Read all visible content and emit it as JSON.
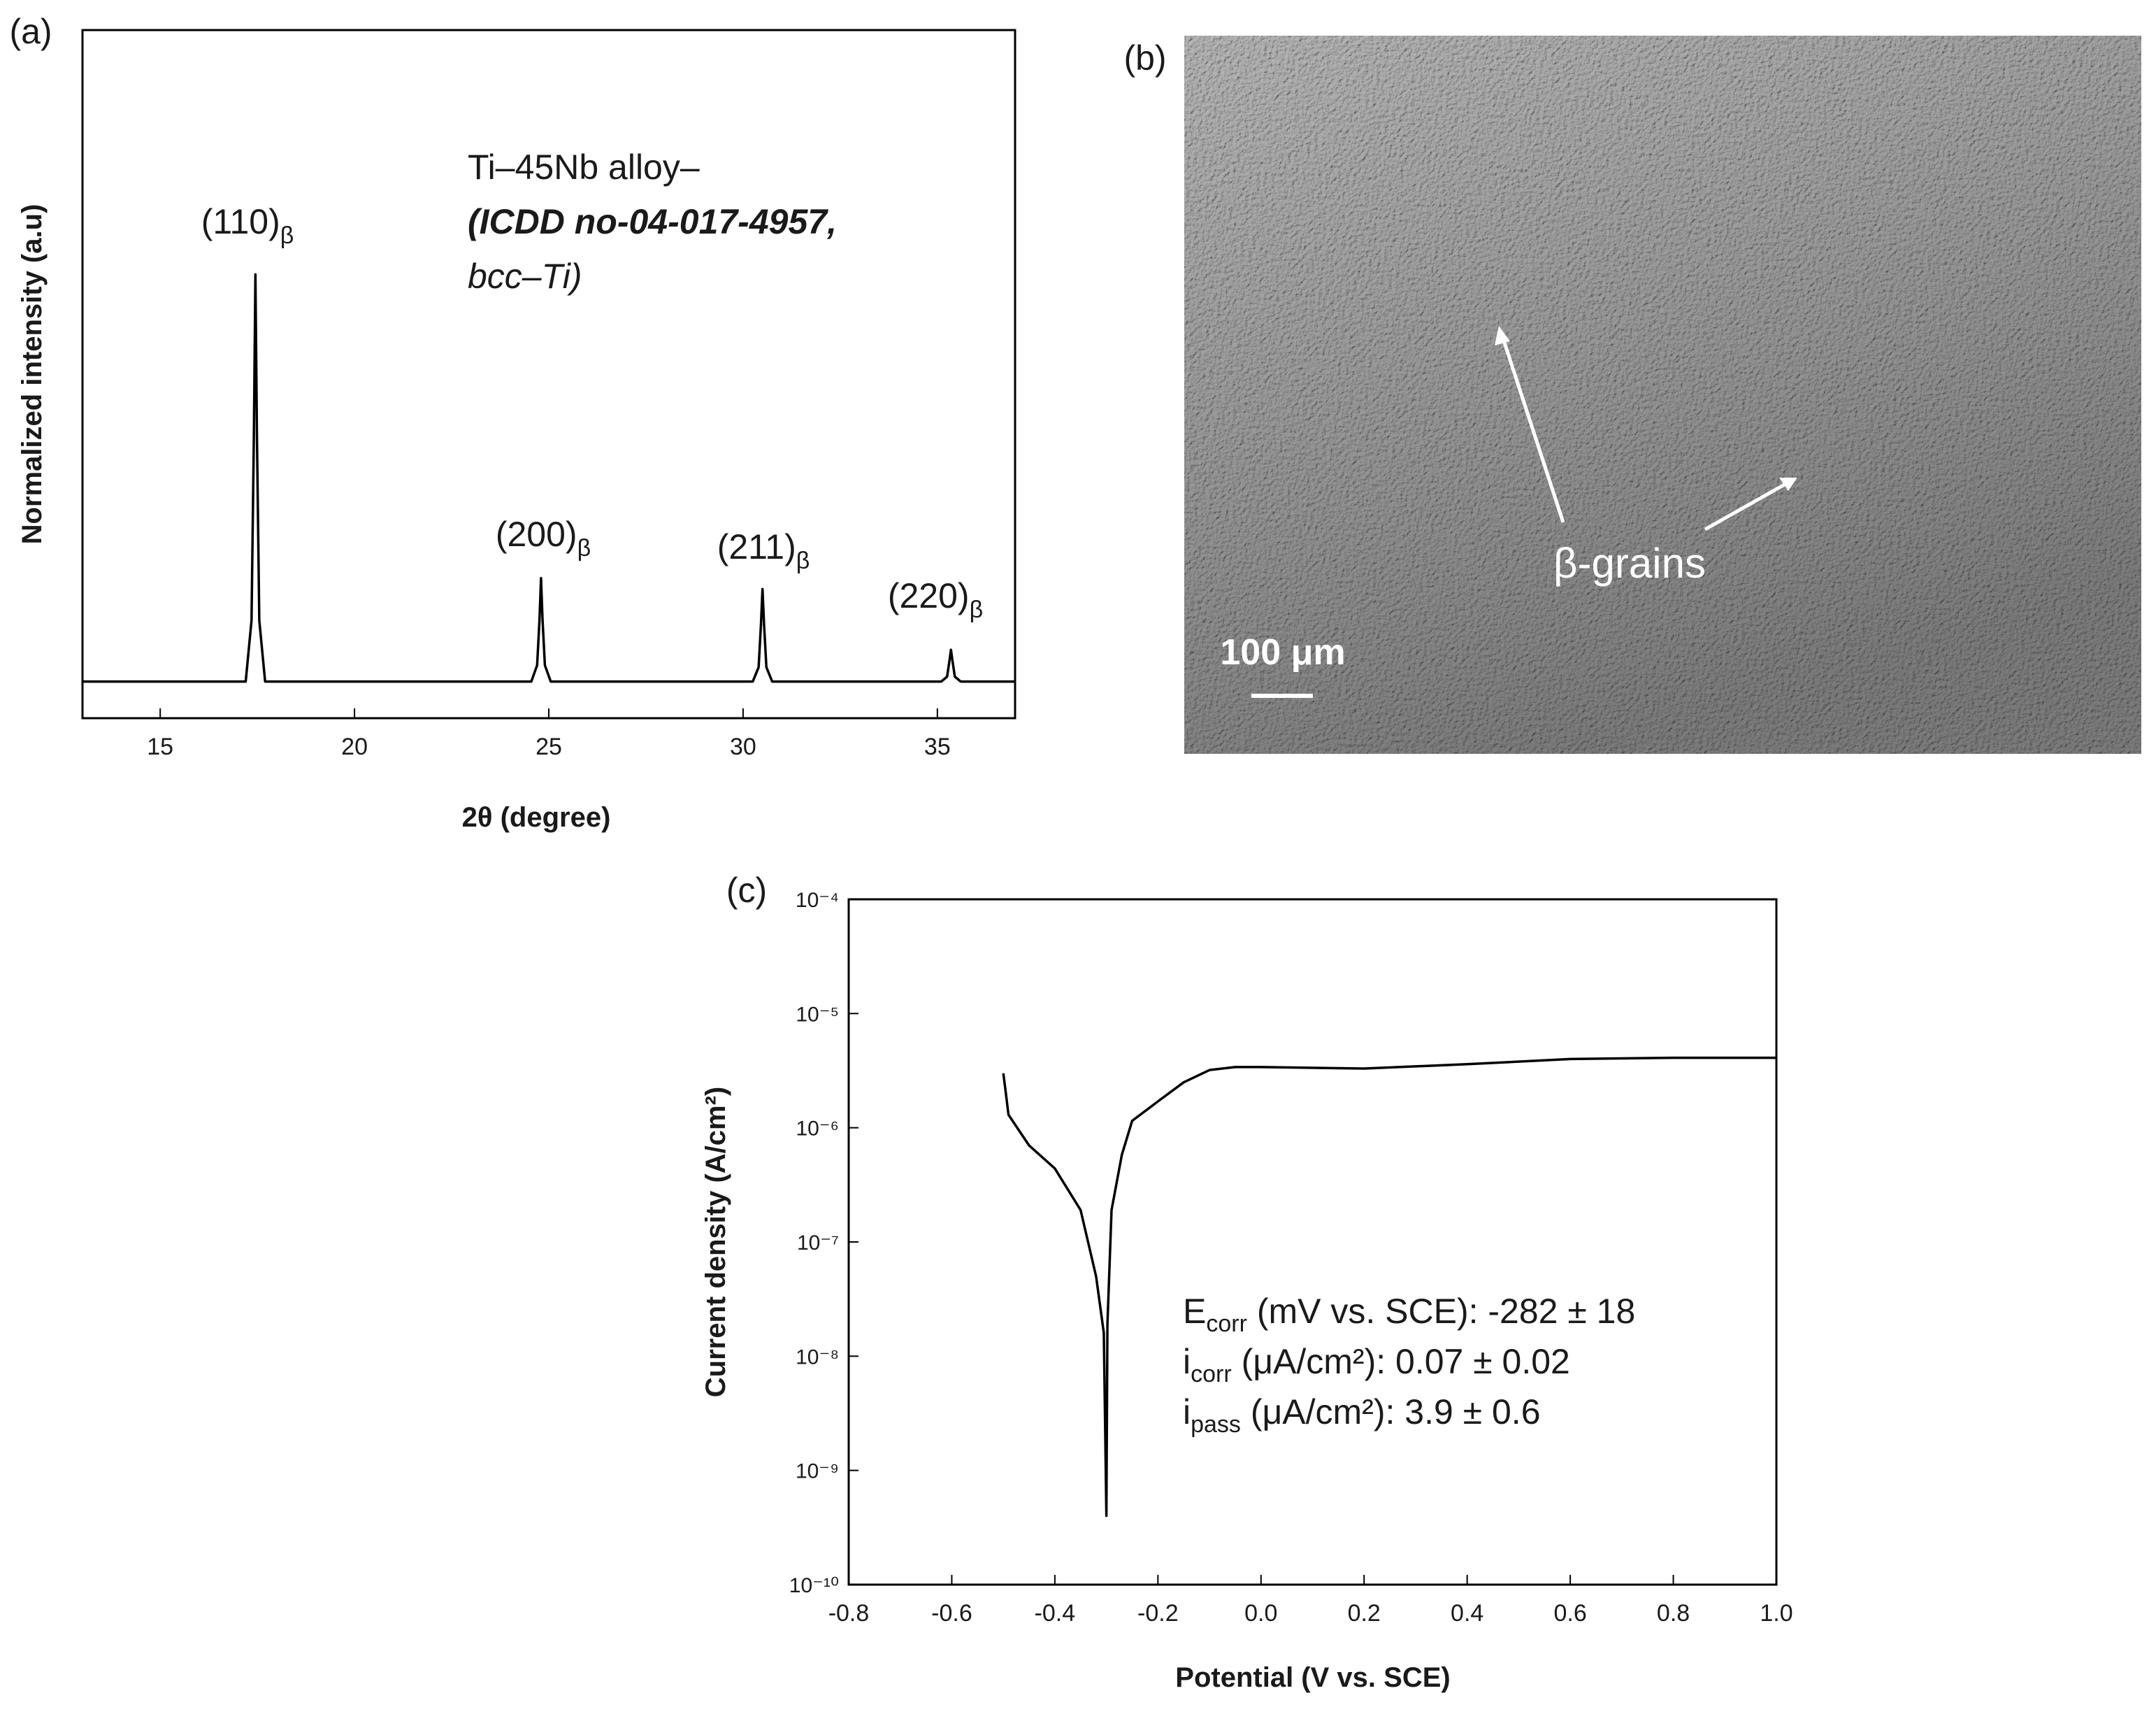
{
  "chart_data": [
    {
      "type": "line",
      "panel_label": "(a)",
      "x_label": "2θ (degree)",
      "y_label": "Normalized intensity (a.u)",
      "xlim": [
        13,
        37
      ],
      "ylim": [
        -0.09,
        1.6
      ],
      "xticks": [
        15,
        20,
        25,
        30,
        35
      ],
      "series": [
        {
          "color": "#000000",
          "x": [
            13,
            17.2,
            17.35,
            17.41,
            17.45,
            17.49,
            17.55,
            17.7,
            24.55,
            24.7,
            24.76,
            24.8,
            24.84,
            24.9,
            25.05,
            30.25,
            30.4,
            30.46,
            30.5,
            30.54,
            30.6,
            30.75,
            35.1,
            35.25,
            35.31,
            35.35,
            35.39,
            35.45,
            35.6,
            37
          ],
          "values": [
            0,
            0,
            0.15,
            0.6,
            1,
            0.6,
            0.15,
            0,
            0,
            0.04,
            0.15,
            0.254,
            0.15,
            0.04,
            0,
            0,
            0.035,
            0.14,
            0.227,
            0.14,
            0.035,
            0,
            0,
            0.012,
            0.05,
            0.078,
            0.05,
            0.012,
            0,
            0
          ]
        }
      ],
      "peak_labels": [
        {
          "text": "(110)",
          "sub": "β"
        },
        {
          "text": "(200)",
          "sub": "β"
        },
        {
          "text": "(211)",
          "sub": "β"
        },
        {
          "text": "(220)",
          "sub": "β"
        }
      ],
      "annotation": [
        "Ti–45Nb alloy–",
        "(ICDD no-04-017-4957,",
        "bcc–Ti)"
      ]
    },
    {
      "type": "line",
      "panel_label": "(c)",
      "x_label": "Potential (V vs. SCE)",
      "y_label": "Current density (A/cm²)",
      "log_y": true,
      "xlim": [
        -0.8,
        1.0
      ],
      "ylim": [
        1e-10,
        0.0001
      ],
      "xticks": [
        -0.8,
        -0.6,
        -0.4,
        -0.2,
        {
          "value": 0,
          "label": "0.0"
        },
        0.2,
        0.4,
        0.6,
        0.8,
        {
          "value": 1,
          "label": "1.0"
        }
      ],
      "yticks": [
        {
          "value": 1e-10,
          "label": "10⁻¹⁰"
        },
        {
          "value": 1e-09,
          "label": "10⁻⁹"
        },
        {
          "value": 1e-08,
          "label": "10⁻⁸"
        },
        {
          "value": 1e-07,
          "label": "10⁻⁷"
        },
        {
          "value": 1e-06,
          "label": "10⁻⁶"
        },
        {
          "value": 1e-05,
          "label": "10⁻⁵"
        },
        {
          "value": 0.0001,
          "label": "10⁻⁴"
        }
      ],
      "series": [
        {
          "color": "#000000",
          "x": [
            -0.5,
            -0.495,
            -0.49,
            -0.45,
            -0.4,
            -0.35,
            -0.32,
            -0.305,
            -0.3,
            -0.298,
            -0.29,
            -0.27,
            -0.25,
            -0.2,
            -0.15,
            -0.1,
            -0.05,
            0,
            0.2,
            0.4,
            0.6,
            0.8,
            1.0
          ],
          "values": [
            3e-06,
            2e-06,
            1.3e-06,
            7e-07,
            4.4e-07,
            1.9e-07,
            5e-08,
            1.6e-08,
            4e-10,
            1.9e-08,
            1.9e-07,
            5.8e-07,
            1.15e-06,
            1.7e-06,
            2.5e-06,
            3.2e-06,
            3.4e-06,
            3.4e-06,
            3.3e-06,
            3.6e-06,
            4e-06,
            4.1e-06,
            4.1e-06
          ]
        }
      ],
      "annotation": [
        {
          "text": "E",
          "sub": "corr",
          "rest": " (mV vs. SCE): -282 ± 18"
        },
        {
          "text": "i",
          "sub": "corr",
          "rest": " (μA/cm²): 0.07 ± 0.02"
        },
        {
          "text": "i",
          "sub": "pass",
          "rest": " (μA/cm²): 3.9 ± 0.6"
        }
      ]
    }
  ],
  "micrograph": {
    "panel_label": "(b)",
    "label": "β-grains",
    "scale_bar": "100 μm"
  }
}
